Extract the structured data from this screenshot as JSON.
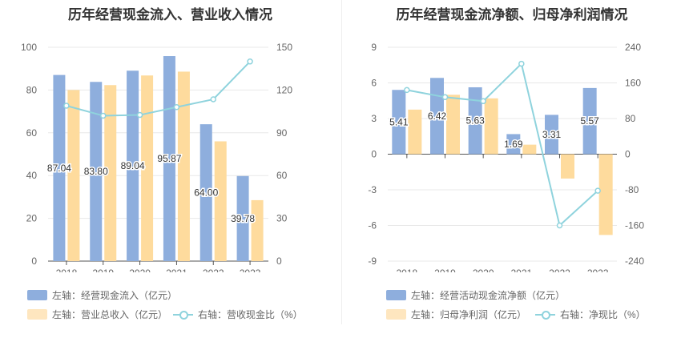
{
  "chart_data": [
    {
      "type": "bar",
      "title": "历年经营现金流入、营业收入情况",
      "categories": [
        "2018",
        "2019",
        "2020",
        "2021",
        "2022",
        "2023"
      ],
      "left_axis": {
        "ticks": [
          "0",
          "20",
          "40",
          "60",
          "80",
          "100"
        ],
        "ylim": [
          0,
          100
        ]
      },
      "right_axis": {
        "ticks": [
          "0",
          "30",
          "60",
          "90",
          "120",
          "150"
        ],
        "ylim": [
          0,
          150
        ]
      },
      "series": [
        {
          "name": "左轴：经营现金流入（亿元）",
          "type": "bar",
          "axis": "left",
          "color": "#8eaedd",
          "values": [
            87.04,
            83.8,
            89.04,
            95.87,
            64.0,
            39.78
          ],
          "labels": [
            "87.04",
            "83.80",
            "89.04",
            "95.87",
            "64.00",
            "39.78"
          ]
        },
        {
          "name": "左轴：营业总收入（亿元）",
          "type": "bar",
          "axis": "left",
          "color": "#fedb9d",
          "values": [
            80.0,
            82.3,
            86.8,
            88.6,
            56.0,
            28.5
          ]
        },
        {
          "name": "右轴：营收现金比（%）",
          "type": "line",
          "axis": "right",
          "color": "#8fd3dd",
          "values": [
            109,
            102,
            102.5,
            108,
            113.5,
            140
          ]
        }
      ],
      "legend_position": "bottom-left",
      "grid": true
    },
    {
      "type": "bar",
      "title": "历年经营现金流净额、归母净利润情况",
      "categories": [
        "2018",
        "2019",
        "2020",
        "2021",
        "2022",
        "2023"
      ],
      "left_axis": {
        "ticks": [
          "-9",
          "-6",
          "-3",
          "0",
          "3",
          "6",
          "9"
        ],
        "ylim": [
          -9,
          9
        ]
      },
      "right_axis": {
        "ticks": [
          "-240",
          "-160",
          "-80",
          "0",
          "80",
          "160",
          "240"
        ],
        "ylim": [
          -240,
          240
        ]
      },
      "series": [
        {
          "name": "左轴：经营活动现金流净额（亿元）",
          "type": "bar",
          "axis": "left",
          "color": "#8eaedd",
          "values": [
            5.41,
            6.42,
            5.63,
            1.69,
            3.31,
            5.57
          ],
          "labels": [
            "5.41",
            "6.42",
            "5.63",
            "1.69",
            "3.31",
            "5.57"
          ]
        },
        {
          "name": "左轴：归母净利润（亿元）",
          "type": "bar",
          "axis": "left",
          "color": "#fedb9d",
          "values": [
            3.75,
            5.0,
            4.7,
            0.8,
            -2.05,
            -6.8
          ]
        },
        {
          "name": "右轴：净现比（%）",
          "type": "line",
          "axis": "right",
          "color": "#8fd3dd",
          "values": [
            144,
            128,
            119,
            203,
            -160,
            -82
          ]
        }
      ],
      "legend_position": "bottom-left",
      "grid": true
    }
  ]
}
